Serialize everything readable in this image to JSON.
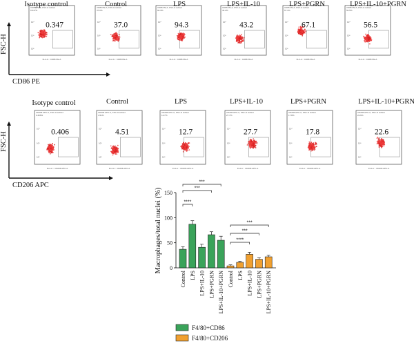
{
  "chart_data": [
    {
      "type": "scatter",
      "panel": "CD86",
      "ylabel": "FSC-H",
      "xlabel": "CD86 PE",
      "headers": [
        "Isotype control",
        "Control",
        "LPS",
        "LPS+IL-10",
        "LPS+PGRN",
        "LPS+IL-10+PGRN"
      ],
      "values": [
        "0.347",
        "37.0",
        "94.3",
        "43.2",
        "67.1",
        "56.5"
      ],
      "subtitles": [
        "CD86 PE-A, FSC-H subset",
        "CD86 PE-A, FSC-H subset",
        "CD86 PE-A, FSC-H subset",
        "CD86 PE-A, FSC-H subset",
        "CD86 PE-A, FSC-H subset",
        "CD86 PE-A, FSC-H subset"
      ],
      "gate_pct": [
        "0.347%",
        "37.0%",
        "94.3%",
        "43.2%",
        "67.1%",
        "56.5%"
      ],
      "plot_xlabel": "FL2-A :: CD86 PE-A"
    },
    {
      "type": "scatter",
      "panel": "CD206",
      "ylabel": "FSC-H",
      "xlabel": "CD206 APC",
      "headers": [
        "Isotype control",
        "Control",
        "LPS",
        "LPS+IL-10",
        "LPS+PGRN",
        "LPS+IL-10+PGRN"
      ],
      "values": [
        "0.406",
        "4.51",
        "12.7",
        "27.7",
        "17.8",
        "22.6"
      ],
      "subtitles": [
        "CD206 APC-A, FSC-H subset",
        "CD206 APC-A, FSC-H subset",
        "CD206 APC-A, FSC-H subset",
        "CD206 APC-A, FSC-H subset",
        "CD206 APC-A, FSC-H subset",
        "CD206 APC-A, FSC-H subset"
      ],
      "gate_pct": [
        "0.406%",
        "4.51%",
        "12.7%",
        "27.7%",
        "17.8%",
        "22.6%"
      ],
      "plot_xlabel": "FL4-A :: CD206 APC-A"
    },
    {
      "type": "bar",
      "ylabel": "Macrophages/total nuclei (%)",
      "ylim": [
        0,
        150
      ],
      "yticks": [
        0,
        50,
        100,
        150
      ],
      "categories": [
        "Control",
        "LPS",
        "LPS+IL-10",
        "LPS+PGRN",
        "LPS+IL-10+PGRN"
      ],
      "series": [
        {
          "name": "F4/80+CD86",
          "color": "#3aa35a",
          "values": [
            37,
            87,
            41,
            66,
            55
          ],
          "errors": [
            5,
            7,
            6,
            6,
            8
          ]
        },
        {
          "name": "F4/80+CD206",
          "color": "#f0a030",
          "values": [
            4,
            11,
            27,
            17,
            22
          ],
          "errors": [
            2,
            2,
            4,
            3,
            3
          ]
        }
      ],
      "significance": [
        {
          "series": 0,
          "from": 0,
          "to": 1,
          "label": "****"
        },
        {
          "series": 0,
          "from": 0,
          "to": 3,
          "label": "***"
        },
        {
          "series": 0,
          "from": 0,
          "to": 4,
          "label": "***"
        },
        {
          "series": 1,
          "from": 0,
          "to": 2,
          "label": "****"
        },
        {
          "series": 1,
          "from": 0,
          "to": 3,
          "label": "***"
        },
        {
          "series": 1,
          "from": 0,
          "to": 4,
          "label": "***"
        }
      ]
    }
  ]
}
